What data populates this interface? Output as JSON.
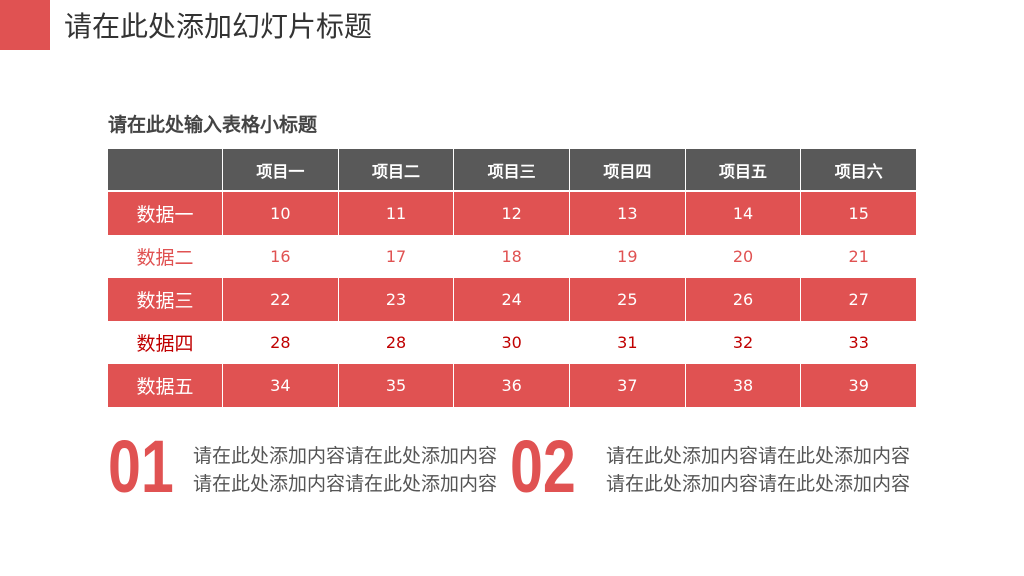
{
  "header": {
    "title": "请在此处添加幻灯片标题"
  },
  "subtitle": "请在此处输入表格小标题",
  "table": {
    "columns": [
      "项目一",
      "项目二",
      "项目三",
      "项目四",
      "项目五",
      "项目六"
    ],
    "rows": [
      {
        "label": "数据一",
        "values": [
          10,
          11,
          12,
          13,
          14,
          15
        ]
      },
      {
        "label": "数据二",
        "values": [
          16,
          17,
          18,
          19,
          20,
          21
        ]
      },
      {
        "label": "数据三",
        "values": [
          22,
          23,
          24,
          25,
          26,
          27
        ]
      },
      {
        "label": "数据四",
        "values": [
          28,
          28,
          30,
          31,
          32,
          33
        ]
      },
      {
        "label": "数据五",
        "values": [
          34,
          35,
          36,
          37,
          38,
          39
        ]
      }
    ]
  },
  "sections": [
    {
      "number": "01",
      "lines": [
        "请在此处添加内容请在此处添加内容",
        "请在此处添加内容请在此处添加内容"
      ]
    },
    {
      "number": "02",
      "lines": [
        "请在此处添加内容请在此处添加内容",
        "请在此处添加内容请在此处添加内容"
      ]
    }
  ]
}
